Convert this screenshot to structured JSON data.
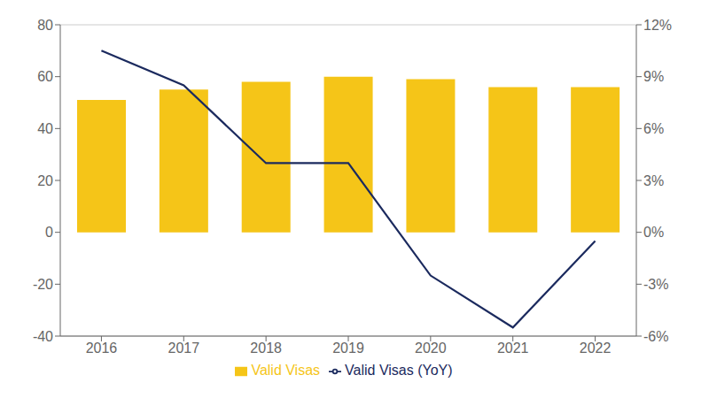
{
  "chart_data": {
    "type": "bar",
    "categories": [
      "2016",
      "2017",
      "2018",
      "2019",
      "2020",
      "2021",
      "2022"
    ],
    "series": [
      {
        "name": "Valid Visas",
        "type": "bar",
        "color": "#F5C518",
        "values": [
          51,
          55,
          58,
          60,
          59,
          56,
          56
        ]
      },
      {
        "name": "Valid Visas (YoY)",
        "type": "line",
        "axis": "y2",
        "color": "#1B2A5E",
        "values": [
          10.5,
          8.5,
          4.0,
          4.0,
          -2.5,
          -5.5,
          -0.5
        ]
      }
    ],
    "ylim": [
      -40,
      80
    ],
    "yticks": [
      -40,
      -20,
      0,
      20,
      40,
      60,
      80
    ],
    "y2lim": [
      -6,
      12
    ],
    "y2ticks": [
      {
        "value": -6,
        "label": "-6%"
      },
      {
        "value": -3,
        "label": "-3%"
      },
      {
        "value": 0,
        "label": "0%"
      },
      {
        "value": 3,
        "label": "3%"
      },
      {
        "value": 6,
        "label": "6%"
      },
      {
        "value": 9,
        "label": "9%"
      },
      {
        "value": 12,
        "label": "12%"
      }
    ],
    "grid": true,
    "legend": "bottom"
  }
}
